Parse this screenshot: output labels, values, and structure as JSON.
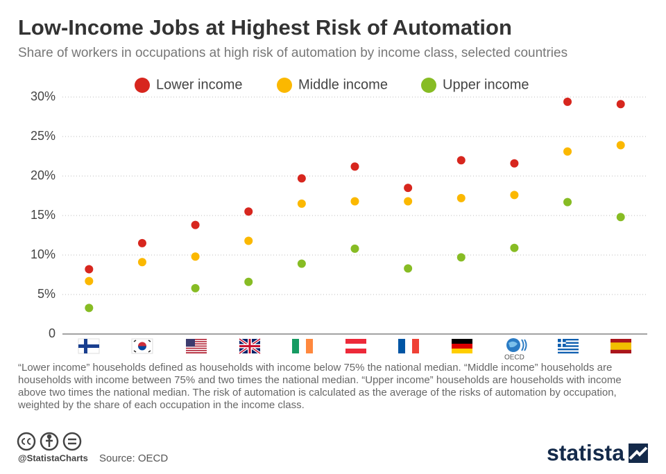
{
  "chart_data": {
    "type": "scatter",
    "title": "Low-Income Jobs at Highest Risk of Automation",
    "subtitle": "Share of workers in occupations at high risk of automation by income class, selected countries",
    "categories": [
      null,
      null,
      null,
      null,
      null,
      null,
      null,
      null,
      "OECD",
      null,
      null
    ],
    "series": [
      {
        "name": "Lower income",
        "color": "#d7261e",
        "values": [
          8.2,
          11.5,
          13.8,
          15.5,
          19.7,
          21.2,
          18.5,
          22.0,
          21.6,
          29.4,
          29.1
        ]
      },
      {
        "name": "Middle income",
        "color": "#fbb800",
        "values": [
          6.7,
          9.1,
          9.8,
          11.8,
          16.5,
          16.8,
          16.8,
          17.2,
          17.6,
          23.1,
          23.9
        ]
      },
      {
        "name": "Upper income",
        "color": "#87bc24",
        "values": [
          3.3,
          null,
          5.8,
          6.6,
          8.9,
          10.8,
          8.3,
          9.7,
          10.9,
          16.7,
          14.8
        ]
      }
    ],
    "ylim": [
      0,
      30
    ],
    "yticks": [
      0,
      {
        "value": 5,
        "label": "5%"
      },
      {
        "value": 10,
        "label": "10%"
      },
      {
        "value": 15,
        "label": "15%"
      },
      {
        "value": 20,
        "label": "20%"
      },
      {
        "value": 25,
        "label": "25%"
      },
      {
        "value": 30,
        "label": "30%"
      }
    ],
    "grid": true,
    "legend": "top",
    "note": "“Lower income” households defined as households with income below 75% the national median. “Middle income” households are households with income between 75% and two times the national median. “Upper income” households are households with income above two times the national median. The risk of automation is calculated as the average of the risks of automation by occupation, weighted by the share of each occupation in the income class.",
    "credit": "@StatistaCharts",
    "source": "Source: OECD",
    "brand": "statista"
  }
}
